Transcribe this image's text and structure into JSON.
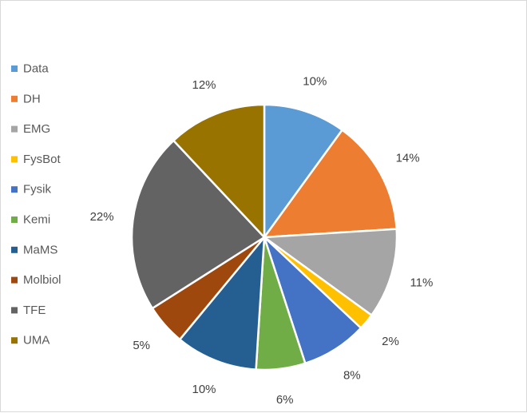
{
  "chart_data": {
    "type": "pie",
    "legend_position": "left",
    "categories": [
      "Data",
      "DH",
      "EMG",
      "FysBot",
      "Fysik",
      "Kemi",
      "MaMS",
      "Molbiol",
      "TFE",
      "UMA"
    ],
    "values": [
      10,
      14,
      11,
      2,
      8,
      6,
      10,
      5,
      22,
      12
    ],
    "labels": [
      "10%",
      "14%",
      "11%",
      "2%",
      "8%",
      "6%",
      "10%",
      "5%",
      "22%",
      "12%"
    ],
    "colors": [
      "#5B9BD5",
      "#ED7D31",
      "#A5A5A5",
      "#FFC000",
      "#4472C4",
      "#70AD47",
      "#255E91",
      "#9E480E",
      "#636363",
      "#997300"
    ]
  }
}
